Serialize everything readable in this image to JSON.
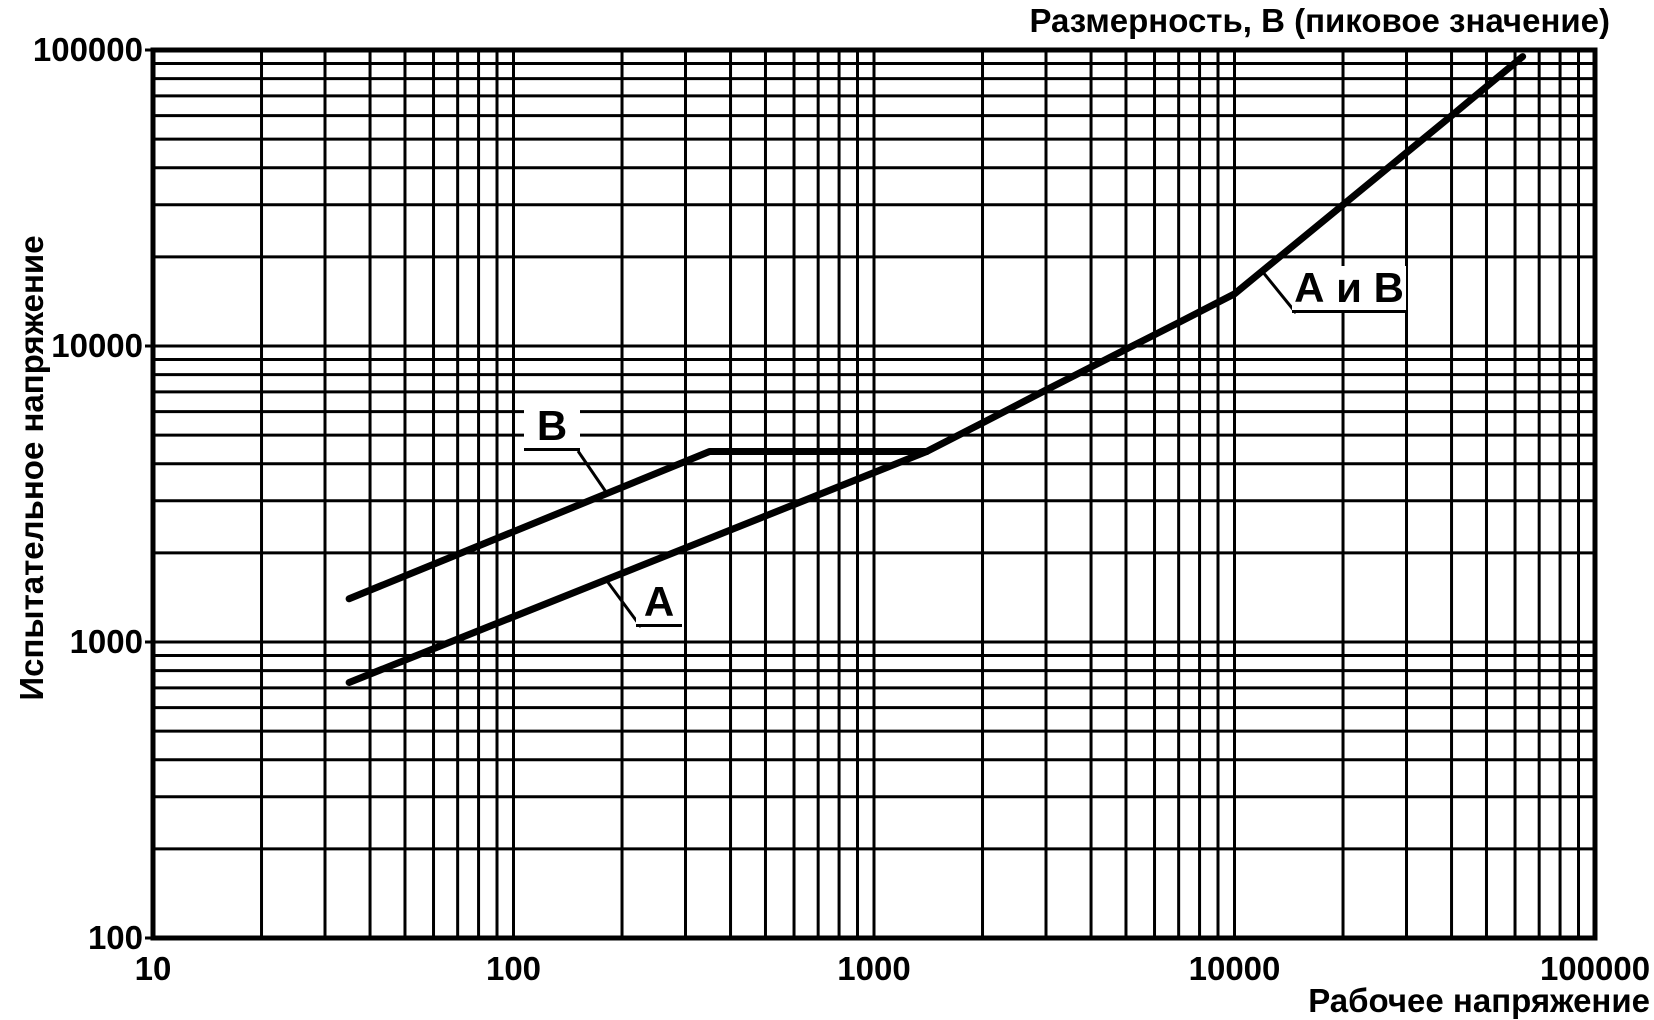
{
  "chart_data": {
    "type": "line",
    "title": "Размерность, В (пиковое значение)",
    "xlabel": "Рабочее напряжение",
    "ylabel": "Испытательное напряжение",
    "x_scale": "log",
    "y_scale": "log",
    "xlim": [
      10,
      100000
    ],
    "ylim": [
      100,
      100000
    ],
    "x_ticks": [
      "10",
      "100",
      "1000",
      "10000",
      "100000"
    ],
    "y_ticks": [
      "100",
      "1000",
      "10000",
      "100000"
    ],
    "grid": "full log grid with minor lines (2-9) on both axes",
    "legend_position": "none (curves labeled by leader-line annotations)",
    "line_color": "#000000",
    "background_color": "#ffffff",
    "series": [
      {
        "name": "A",
        "description": "lower curve, straight in log-log coordinates",
        "points": [
          [
            35,
            730
          ],
          [
            1400,
            4400
          ]
        ]
      },
      {
        "name": "B",
        "description": "upper curve, rises then flat plateau at 4400 V until it meets curve A",
        "points": [
          [
            35,
            1400
          ],
          [
            350,
            4400
          ],
          [
            1400,
            4400
          ]
        ]
      },
      {
        "name": "А и В",
        "description": "merged continuation of A and B above 1400 V working voltage; above ~10 kV follows V_test = 1.5 x U",
        "points": [
          [
            1400,
            4400
          ],
          [
            2000,
            5500
          ],
          [
            3000,
            7100
          ],
          [
            5000,
            9750
          ],
          [
            7000,
            12000
          ],
          [
            10000,
            15000
          ],
          [
            20000,
            30000
          ],
          [
            40000,
            60000
          ],
          [
            63000,
            95000
          ]
        ]
      }
    ],
    "annotations": [
      {
        "text": "В",
        "target_curve": "B",
        "attach_at_x": 180
      },
      {
        "text": "А",
        "target_curve": "A",
        "attach_at_x": 182
      },
      {
        "text": "А и В",
        "target_curve": "А и В",
        "attach_at_x": 11900
      }
    ]
  }
}
